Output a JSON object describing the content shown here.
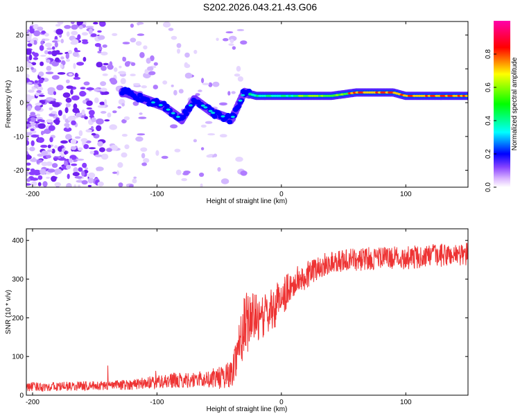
{
  "title": "S202.2026.043.21.43.G06",
  "chart_data": [
    {
      "type": "heatmap",
      "title": "S202.2026.043.21.43.G06",
      "xlabel": "Height of straight line (km)",
      "ylabel": "Frequency (Hz)",
      "xlim": [
        -205,
        150
      ],
      "ylim": [
        -25,
        24
      ],
      "xticks": [
        -200,
        -100,
        0,
        100
      ],
      "xtick_labels": [
        "-200",
        "-100",
        "0",
        "100"
      ],
      "yticks": [
        20,
        10,
        0,
        -10,
        -20
      ],
      "ytick_labels": [
        "20",
        "10",
        "0",
        "-10",
        "-20"
      ],
      "colorbar": {
        "label": "Normalized spectral amplitude",
        "range": [
          0,
          1
        ],
        "ticks": [
          0.0,
          0.2,
          0.4,
          0.6,
          0.8
        ],
        "tick_labels": [
          "0.0",
          "0.2",
          "0.4",
          "0.6",
          "0.8"
        ],
        "colors": [
          "#ffffff",
          "#aa55ff",
          "#0000ff",
          "#00ffff",
          "#00ff00",
          "#ffff00",
          "#ff0000",
          "#ff00aa"
        ]
      },
      "ridge": {
        "height_km": [
          -125,
          -110,
          -95,
          -80,
          -70,
          -55,
          -40,
          -30,
          -20,
          0,
          20,
          40,
          60,
          80,
          90,
          100,
          120,
          150
        ],
        "frequency_hz": [
          3,
          1,
          -1,
          -5,
          1,
          -3,
          -5,
          3,
          2,
          2,
          2,
          2,
          3,
          3,
          3,
          2,
          2,
          2
        ]
      }
    },
    {
      "type": "line",
      "title": "",
      "xlabel": "Height of straight line (km)",
      "ylabel": "SNR (10 * v/v)",
      "xlim": [
        -205,
        150
      ],
      "ylim": [
        0,
        430
      ],
      "xticks": [
        -200,
        -100,
        0,
        100
      ],
      "xtick_labels": [
        "-200",
        "-100",
        "0",
        "100"
      ],
      "yticks": [
        0,
        100,
        200,
        300,
        400
      ],
      "ytick_labels": [
        "0",
        "100",
        "200",
        "300",
        "400"
      ],
      "series": [
        {
          "name": "SNR",
          "color": "#ee3333",
          "x": [
            -205,
            -180,
            -160,
            -140,
            -120,
            -100,
            -90,
            -80,
            -70,
            -60,
            -50,
            -40,
            -35,
            -30,
            -25,
            -20,
            -15,
            -10,
            -5,
            0,
            5,
            10,
            20,
            30,
            40,
            60,
            80,
            100,
            120,
            150
          ],
          "mean": [
            22,
            22,
            24,
            25,
            28,
            35,
            38,
            38,
            40,
            42,
            45,
            55,
            120,
            180,
            200,
            200,
            200,
            215,
            230,
            255,
            270,
            290,
            310,
            330,
            345,
            350,
            355,
            355,
            360,
            365
          ],
          "spread": [
            12,
            12,
            12,
            12,
            14,
            18,
            20,
            20,
            20,
            22,
            30,
            35,
            60,
            80,
            80,
            60,
            55,
            55,
            55,
            50,
            45,
            40,
            35,
            30,
            30,
            30,
            30,
            30,
            30,
            30
          ]
        }
      ]
    }
  ]
}
